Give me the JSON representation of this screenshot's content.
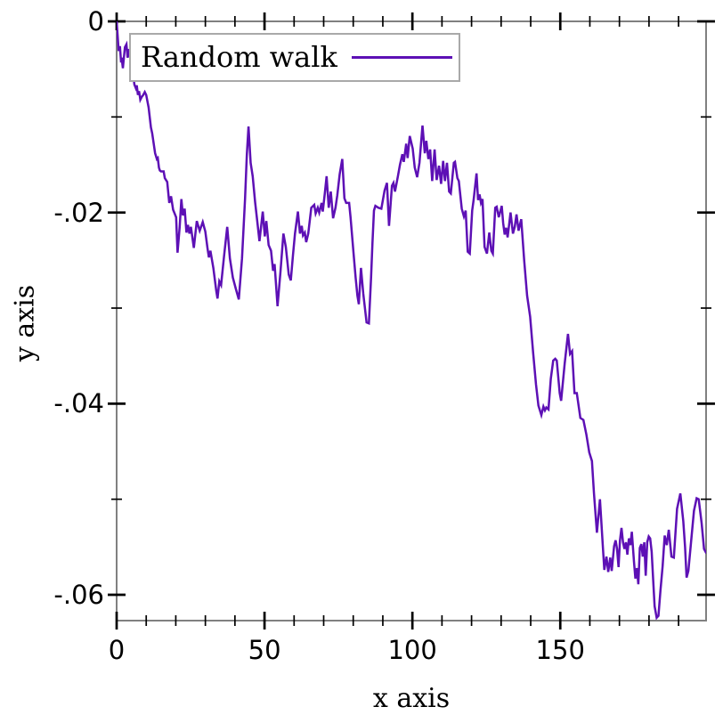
{
  "figure": {
    "background": "#ffffff"
  },
  "style": {
    "line_color": "#5d10b5",
    "border_color": "#808080",
    "tick_color": "#000000",
    "legend_border_color": "#a9a9a9",
    "text_color": "#000000"
  },
  "chart_data": {
    "type": "line",
    "title": "",
    "xlabel": "x axis",
    "ylabel": "y axis",
    "grid": false,
    "legend": {
      "position": "top-left",
      "entries": [
        {
          "label": "Random walk",
          "color": "#5d10b5",
          "style": "solid-line"
        }
      ]
    },
    "xlim": [
      0,
      199.3
    ],
    "ylim": [
      -0.0627,
      0
    ],
    "x_major_ticks": [
      0,
      50,
      100,
      150
    ],
    "x_tick_labels": [
      "0",
      "50",
      "100",
      "150"
    ],
    "x_minor_step": 10,
    "y_major_ticks": [
      0,
      -0.02,
      -0.04,
      -0.06
    ],
    "y_tick_labels": [
      "0",
      "-.02",
      "-.04",
      "-.06"
    ],
    "y_minor_ticks": [
      -0.01,
      -0.03,
      -0.05
    ],
    "series": [
      {
        "name": "Random walk",
        "color": "#5d10b5",
        "points": [
          [
            0,
            0
          ],
          [
            0.7,
            -0.0031
          ],
          [
            1.1,
            -0.0026
          ],
          [
            1.5,
            -0.0043
          ],
          [
            1.7,
            -0.0038
          ],
          [
            2.1,
            -0.0049
          ],
          [
            2.8,
            -0.0027
          ],
          [
            3.3,
            -0.0024
          ],
          [
            3.7,
            -0.0038
          ],
          [
            4.2,
            -0.0029
          ],
          [
            4.7,
            -0.0041
          ],
          [
            5,
            -0.0037
          ],
          [
            5.5,
            -0.0053
          ],
          [
            6,
            -0.0066
          ],
          [
            6.5,
            -0.007
          ],
          [
            6.8,
            -0.0067
          ],
          [
            7.2,
            -0.0077
          ],
          [
            7.6,
            -0.0073
          ],
          [
            8,
            -0.0082
          ],
          [
            8.5,
            -0.0079
          ],
          [
            9,
            -0.0077
          ],
          [
            9.5,
            -0.0074
          ],
          [
            10,
            -0.0077
          ],
          [
            10.8,
            -0.009
          ],
          [
            11.6,
            -0.0111
          ],
          [
            12,
            -0.0117
          ],
          [
            13,
            -0.0138
          ],
          [
            13.6,
            -0.0144
          ],
          [
            13.9,
            -0.0143
          ],
          [
            14.3,
            -0.0153
          ],
          [
            14.6,
            -0.0156
          ],
          [
            15,
            -0.0157
          ],
          [
            15.9,
            -0.0157
          ],
          [
            16.3,
            -0.0164
          ],
          [
            17.1,
            -0.0168
          ],
          [
            17.8,
            -0.019
          ],
          [
            18.4,
            -0.0183
          ],
          [
            19.1,
            -0.0197
          ],
          [
            19.6,
            -0.0201
          ],
          [
            20.1,
            -0.0205
          ],
          [
            20.6,
            -0.0242
          ],
          [
            21.3,
            -0.0215
          ],
          [
            21.9,
            -0.0186
          ],
          [
            22.4,
            -0.0203
          ],
          [
            23,
            -0.0196
          ],
          [
            23.6,
            -0.0221
          ],
          [
            24.1,
            -0.0213
          ],
          [
            24.6,
            -0.0222
          ],
          [
            25.1,
            -0.0215
          ],
          [
            26.1,
            -0.0237
          ],
          [
            27.1,
            -0.0209
          ],
          [
            28.1,
            -0.0219
          ],
          [
            29.1,
            -0.021
          ],
          [
            30,
            -0.022
          ],
          [
            30.7,
            -0.0237
          ],
          [
            31.2,
            -0.0247
          ],
          [
            31.7,
            -0.024
          ],
          [
            32.7,
            -0.0258
          ],
          [
            33.7,
            -0.0282
          ],
          [
            34.1,
            -0.029
          ],
          [
            34.7,
            -0.0272
          ],
          [
            35.3,
            -0.0276
          ],
          [
            36.3,
            -0.0246
          ],
          [
            37.4,
            -0.0215
          ],
          [
            38.3,
            -0.0248
          ],
          [
            39.3,
            -0.0268
          ],
          [
            40.3,
            -0.028
          ],
          [
            41.3,
            -0.0291
          ],
          [
            42.4,
            -0.0248
          ],
          [
            43.4,
            -0.0186
          ],
          [
            44,
            -0.014
          ],
          [
            44.6,
            -0.011
          ],
          [
            45.3,
            -0.0148
          ],
          [
            46,
            -0.0162
          ],
          [
            46.8,
            -0.0189
          ],
          [
            47.5,
            -0.0208
          ],
          [
            48.3,
            -0.023
          ],
          [
            49.4,
            -0.0199
          ],
          [
            50.1,
            -0.0225
          ],
          [
            50.6,
            -0.0209
          ],
          [
            51.4,
            -0.0234
          ],
          [
            52.2,
            -0.024
          ],
          [
            52.9,
            -0.0261
          ],
          [
            53.4,
            -0.0254
          ],
          [
            54.4,
            -0.0298
          ],
          [
            55.4,
            -0.0262
          ],
          [
            56.4,
            -0.0222
          ],
          [
            57.2,
            -0.0236
          ],
          [
            58.2,
            -0.0265
          ],
          [
            58.9,
            -0.0271
          ],
          [
            59.6,
            -0.0245
          ],
          [
            60.3,
            -0.0222
          ],
          [
            61.3,
            -0.0199
          ],
          [
            62,
            -0.0222
          ],
          [
            62.6,
            -0.0214
          ],
          [
            63,
            -0.0224
          ],
          [
            63.6,
            -0.0221
          ],
          [
            64.1,
            -0.0231
          ],
          [
            64.8,
            -0.0222
          ],
          [
            65.8,
            -0.0195
          ],
          [
            66.8,
            -0.0192
          ],
          [
            67.3,
            -0.0201
          ],
          [
            68,
            -0.0195
          ],
          [
            68.5,
            -0.02
          ],
          [
            69.3,
            -0.019
          ],
          [
            69.7,
            -0.0199
          ],
          [
            70.4,
            -0.018
          ],
          [
            71,
            -0.0162
          ],
          [
            71.7,
            -0.0195
          ],
          [
            72.4,
            -0.0178
          ],
          [
            73.2,
            -0.0206
          ],
          [
            74,
            -0.0195
          ],
          [
            74.6,
            -0.0182
          ],
          [
            75.4,
            -0.016
          ],
          [
            76.3,
            -0.0144
          ],
          [
            77,
            -0.0185
          ],
          [
            77.6,
            -0.019
          ],
          [
            78.6,
            -0.019
          ],
          [
            79.1,
            -0.0205
          ],
          [
            80.1,
            -0.0243
          ],
          [
            80.8,
            -0.0268
          ],
          [
            81.4,
            -0.0287
          ],
          [
            81.9,
            -0.0296
          ],
          [
            82.6,
            -0.0258
          ],
          [
            83.4,
            -0.0285
          ],
          [
            84.5,
            -0.0315
          ],
          [
            85.3,
            -0.0316
          ],
          [
            86,
            -0.0269
          ],
          [
            86.5,
            -0.0232
          ],
          [
            87,
            -0.0198
          ],
          [
            87.5,
            -0.0193
          ],
          [
            88.5,
            -0.0195
          ],
          [
            89.5,
            -0.0196
          ],
          [
            90.6,
            -0.0177
          ],
          [
            91.4,
            -0.0169
          ],
          [
            92.1,
            -0.0214
          ],
          [
            93.1,
            -0.0172
          ],
          [
            93.6,
            -0.0169
          ],
          [
            94.1,
            -0.0178
          ],
          [
            95.1,
            -0.0162
          ],
          [
            95.8,
            -0.015
          ],
          [
            96.6,
            -0.0139
          ],
          [
            97.1,
            -0.0147
          ],
          [
            97.9,
            -0.0128
          ],
          [
            98.4,
            -0.0143
          ],
          [
            99.1,
            -0.012
          ],
          [
            100.1,
            -0.0133
          ],
          [
            100.8,
            -0.0153
          ],
          [
            101.6,
            -0.0163
          ],
          [
            102.4,
            -0.0148
          ],
          [
            103.4,
            -0.0109
          ],
          [
            104.2,
            -0.0138
          ],
          [
            104.7,
            -0.0125
          ],
          [
            105.4,
            -0.0144
          ],
          [
            106,
            -0.0134
          ],
          [
            106.7,
            -0.0167
          ],
          [
            107.5,
            -0.0134
          ],
          [
            108.2,
            -0.0166
          ],
          [
            109,
            -0.0151
          ],
          [
            109.7,
            -0.017
          ],
          [
            110.4,
            -0.0146
          ],
          [
            111,
            -0.0167
          ],
          [
            111.7,
            -0.0148
          ],
          [
            112.4,
            -0.0178
          ],
          [
            113,
            -0.018
          ],
          [
            114,
            -0.0148
          ],
          [
            114.4,
            -0.0147
          ],
          [
            115.2,
            -0.0164
          ],
          [
            115.7,
            -0.0167
          ],
          [
            116.7,
            -0.0196
          ],
          [
            117.4,
            -0.0204
          ],
          [
            118,
            -0.0198
          ],
          [
            118.7,
            -0.0241
          ],
          [
            119.4,
            -0.0243
          ],
          [
            120.2,
            -0.0198
          ],
          [
            120.7,
            -0.0187
          ],
          [
            121.7,
            -0.0159
          ],
          [
            122.2,
            -0.0187
          ],
          [
            122.7,
            -0.0181
          ],
          [
            123.2,
            -0.019
          ],
          [
            123.7,
            -0.0186
          ],
          [
            124.4,
            -0.0236
          ],
          [
            125.2,
            -0.0243
          ],
          [
            126,
            -0.0221
          ],
          [
            126.7,
            -0.024
          ],
          [
            127.2,
            -0.0243
          ],
          [
            128,
            -0.0195
          ],
          [
            128.5,
            -0.0194
          ],
          [
            129.2,
            -0.0205
          ],
          [
            130.2,
            -0.0193
          ],
          [
            130.7,
            -0.0211
          ],
          [
            131.2,
            -0.0223
          ],
          [
            131.7,
            -0.0216
          ],
          [
            132.2,
            -0.0226
          ],
          [
            133.2,
            -0.02
          ],
          [
            134,
            -0.0222
          ],
          [
            134.6,
            -0.0215
          ],
          [
            135.2,
            -0.0202
          ],
          [
            135.9,
            -0.0219
          ],
          [
            136.8,
            -0.0207
          ],
          [
            137.8,
            -0.025
          ],
          [
            138.8,
            -0.0287
          ],
          [
            139.8,
            -0.0309
          ],
          [
            140.8,
            -0.0346
          ],
          [
            141.8,
            -0.038
          ],
          [
            142.6,
            -0.0402
          ],
          [
            143.6,
            -0.0412
          ],
          [
            144.3,
            -0.0403
          ],
          [
            144.8,
            -0.0407
          ],
          [
            145.3,
            -0.0404
          ],
          [
            146,
            -0.0406
          ],
          [
            146.8,
            -0.0374
          ],
          [
            147.6,
            -0.0355
          ],
          [
            148.3,
            -0.0353
          ],
          [
            148.8,
            -0.0355
          ],
          [
            149.8,
            -0.0389
          ],
          [
            150.3,
            -0.0397
          ],
          [
            151.5,
            -0.0358
          ],
          [
            152.6,
            -0.0327
          ],
          [
            153.3,
            -0.0348
          ],
          [
            154,
            -0.0345
          ],
          [
            154.8,
            -0.0389
          ],
          [
            155.6,
            -0.0389
          ],
          [
            156.8,
            -0.0415
          ],
          [
            157.8,
            -0.0417
          ],
          [
            158.8,
            -0.0432
          ],
          [
            159.8,
            -0.0451
          ],
          [
            160.7,
            -0.046
          ],
          [
            161.4,
            -0.0494
          ],
          [
            162.4,
            -0.0535
          ],
          [
            163.4,
            -0.05
          ],
          [
            164.4,
            -0.055
          ],
          [
            164.9,
            -0.0574
          ],
          [
            165.6,
            -0.056
          ],
          [
            166.2,
            -0.0576
          ],
          [
            166.9,
            -0.0561
          ],
          [
            167.4,
            -0.0575
          ],
          [
            168.2,
            -0.0549
          ],
          [
            168.7,
            -0.0543
          ],
          [
            169.2,
            -0.0552
          ],
          [
            169.7,
            -0.0571
          ],
          [
            170.2,
            -0.0543
          ],
          [
            170.7,
            -0.053
          ],
          [
            171.2,
            -0.0545
          ],
          [
            171.7,
            -0.0552
          ],
          [
            172.2,
            -0.0545
          ],
          [
            172.7,
            -0.0558
          ],
          [
            173.2,
            -0.0541
          ],
          [
            173.7,
            -0.0548
          ],
          [
            174.2,
            -0.0534
          ],
          [
            174.9,
            -0.0565
          ],
          [
            175.4,
            -0.0583
          ],
          [
            175.9,
            -0.0572
          ],
          [
            176.4,
            -0.0589
          ],
          [
            176.9,
            -0.0551
          ],
          [
            177.4,
            -0.0547
          ],
          [
            177.9,
            -0.056
          ],
          [
            178.4,
            -0.0545
          ],
          [
            178.9,
            -0.058
          ],
          [
            179.4,
            -0.0545
          ],
          [
            179.9,
            -0.0539
          ],
          [
            180.4,
            -0.0541
          ],
          [
            180.9,
            -0.0555
          ],
          [
            181.4,
            -0.0583
          ],
          [
            181.9,
            -0.0612
          ],
          [
            182.6,
            -0.0624
          ],
          [
            183.2,
            -0.0622
          ],
          [
            183.9,
            -0.0595
          ],
          [
            184.6,
            -0.057
          ],
          [
            185.3,
            -0.0538
          ],
          [
            186,
            -0.0548
          ],
          [
            186.7,
            -0.0532
          ],
          [
            187.6,
            -0.056
          ],
          [
            188.4,
            -0.0561
          ],
          [
            189.5,
            -0.051
          ],
          [
            190.6,
            -0.0494
          ],
          [
            191.6,
            -0.0523
          ],
          [
            192.2,
            -0.055
          ],
          [
            192.7,
            -0.0582
          ],
          [
            193.3,
            -0.0575
          ],
          [
            194.2,
            -0.0545
          ],
          [
            195.2,
            -0.0512
          ],
          [
            196.1,
            -0.0499
          ],
          [
            196.8,
            -0.05
          ],
          [
            197.8,
            -0.0525
          ],
          [
            198.6,
            -0.0552
          ],
          [
            199.3,
            -0.0556
          ]
        ]
      }
    ]
  }
}
